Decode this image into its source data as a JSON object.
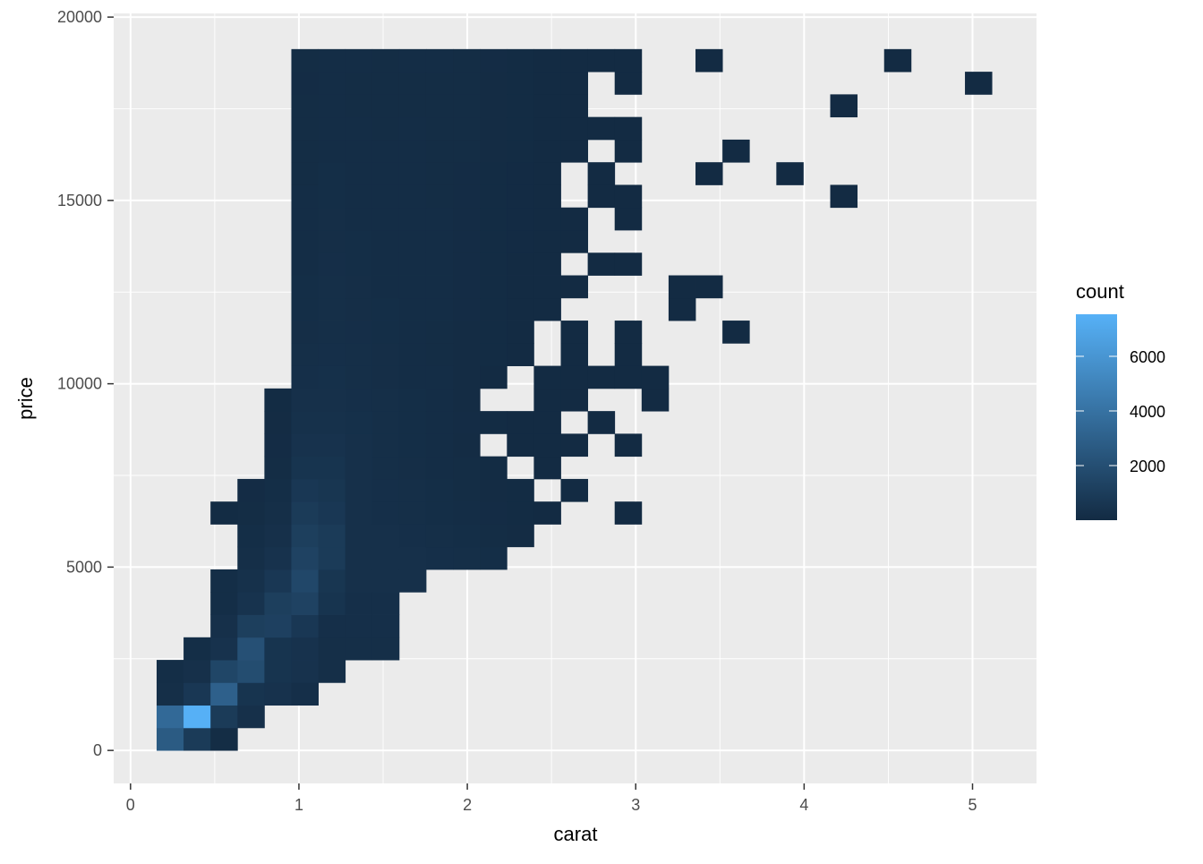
{
  "chart_data": {
    "type": "heatmap",
    "geom": "bin2d",
    "xlabel": "carat",
    "ylabel": "price",
    "xlim": [
      -0.1,
      5.38
    ],
    "ylim": [
      -900,
      20100
    ],
    "x_ticks": [
      0,
      1,
      2,
      3,
      4,
      5
    ],
    "x_tick_labels": [
      "0",
      "1",
      "2",
      "3",
      "4",
      "5"
    ],
    "y_ticks": [
      0,
      5000,
      10000,
      15000,
      20000
    ],
    "y_tick_labels": [
      "0",
      "5000",
      "10000",
      "15000",
      "20000"
    ],
    "grid": true,
    "panel_background": "#EBEBEB",
    "x_bin_start": 0.155,
    "x_bin_width": 0.16,
    "y_bin_start": 0,
    "y_bin_width": 617,
    "counts_rows_bottom_to_top": [
      [
        2700,
        900,
        100,
        0,
        0,
        0,
        0,
        0,
        0,
        0,
        0,
        0,
        0,
        0,
        0,
        0,
        0,
        0,
        0,
        0,
        0,
        0,
        0,
        0,
        0,
        0,
        0,
        0,
        0,
        0,
        0
      ],
      [
        3500,
        7500,
        900,
        300,
        0,
        0,
        0,
        0,
        0,
        0,
        0,
        0,
        0,
        0,
        0,
        0,
        0,
        0,
        0,
        0,
        0,
        0,
        0,
        0,
        0,
        0,
        0,
        0,
        0,
        0,
        0
      ],
      [
        200,
        700,
        3000,
        500,
        400,
        250,
        0,
        0,
        0,
        0,
        0,
        0,
        0,
        0,
        0,
        0,
        0,
        0,
        0,
        0,
        0,
        0,
        0,
        0,
        0,
        0,
        0,
        0,
        0,
        0,
        0
      ],
      [
        150,
        300,
        1500,
        1900,
        500,
        400,
        200,
        0,
        0,
        0,
        0,
        0,
        0,
        0,
        0,
        0,
        0,
        0,
        0,
        0,
        0,
        0,
        0,
        0,
        0,
        0,
        0,
        0,
        0,
        0,
        0
      ],
      [
        0,
        150,
        400,
        2100,
        500,
        400,
        200,
        200,
        200,
        0,
        0,
        0,
        0,
        0,
        0,
        0,
        0,
        0,
        0,
        0,
        0,
        0,
        0,
        0,
        0,
        0,
        0,
        0,
        0,
        0,
        0
      ],
      [
        0,
        0,
        300,
        1100,
        1200,
        700,
        250,
        250,
        250,
        0,
        0,
        0,
        0,
        0,
        0,
        0,
        0,
        0,
        0,
        0,
        0,
        0,
        0,
        0,
        0,
        0,
        0,
        0,
        0,
        0,
        0
      ],
      [
        0,
        0,
        150,
        450,
        1100,
        1300,
        500,
        250,
        250,
        0,
        0,
        0,
        0,
        0,
        0,
        0,
        0,
        0,
        0,
        0,
        0,
        0,
        0,
        0,
        0,
        0,
        0,
        0,
        0,
        0,
        0
      ],
      [
        0,
        0,
        150,
        350,
        700,
        1600,
        600,
        300,
        300,
        300,
        0,
        0,
        0,
        0,
        0,
        0,
        0,
        0,
        0,
        0,
        0,
        0,
        0,
        0,
        0,
        0,
        0,
        0,
        0,
        0,
        0
      ],
      [
        0,
        0,
        0,
        200,
        400,
        1300,
        900,
        300,
        300,
        300,
        250,
        200,
        150,
        0,
        0,
        0,
        0,
        0,
        0,
        0,
        0,
        0,
        0,
        0,
        0,
        0,
        0,
        0,
        0,
        0,
        0
      ],
      [
        0,
        0,
        0,
        150,
        300,
        1100,
        900,
        300,
        300,
        250,
        200,
        150,
        100,
        60,
        0,
        0,
        0,
        0,
        0,
        0,
        0,
        0,
        0,
        0,
        0,
        0,
        0,
        0,
        0,
        0,
        0
      ],
      [
        0,
        0,
        30,
        100,
        200,
        900,
        700,
        300,
        250,
        200,
        150,
        120,
        80,
        50,
        20,
        0,
        0,
        2,
        0,
        0,
        0,
        0,
        0,
        0,
        0,
        0,
        0,
        0,
        0,
        0,
        0
      ],
      [
        0,
        0,
        0,
        80,
        150,
        700,
        600,
        300,
        250,
        200,
        150,
        100,
        60,
        30,
        0,
        3,
        0,
        0,
        0,
        0,
        0,
        0,
        0,
        0,
        0,
        0,
        0,
        0,
        0,
        0,
        0
      ],
      [
        0,
        0,
        0,
        0,
        100,
        500,
        500,
        300,
        200,
        180,
        130,
        90,
        40,
        0,
        5,
        0,
        0,
        0,
        0,
        0,
        0,
        0,
        0,
        0,
        0,
        0,
        0,
        0,
        0,
        0,
        0
      ],
      [
        0,
        0,
        0,
        0,
        80,
        400,
        400,
        300,
        200,
        150,
        110,
        60,
        0,
        10,
        5,
        2,
        0,
        1,
        0,
        0,
        0,
        0,
        0,
        0,
        0,
        0,
        0,
        0,
        0,
        0,
        0
      ],
      [
        0,
        0,
        0,
        0,
        60,
        350,
        350,
        280,
        200,
        150,
        110,
        70,
        40,
        15,
        5,
        0,
        1,
        0,
        0,
        0,
        0,
        0,
        0,
        0,
        0,
        0,
        0,
        0,
        0,
        0,
        0
      ],
      [
        0,
        0,
        0,
        0,
        40,
        300,
        300,
        250,
        200,
        150,
        110,
        60,
        0,
        0,
        3,
        2,
        0,
        0,
        1,
        0,
        0,
        0,
        0,
        0,
        0,
        0,
        0,
        0,
        0,
        0,
        0
      ],
      [
        0,
        0,
        0,
        0,
        0,
        250,
        280,
        230,
        180,
        140,
        110,
        60,
        20,
        0,
        5,
        2,
        1,
        2,
        1,
        0,
        0,
        0,
        0,
        0,
        0,
        0,
        0,
        0,
        0,
        0,
        0
      ],
      [
        0,
        0,
        0,
        0,
        0,
        200,
        250,
        200,
        170,
        130,
        100,
        60,
        30,
        8,
        0,
        2,
        0,
        1,
        0,
        0,
        0,
        0,
        0,
        0,
        0,
        0,
        0,
        0,
        0,
        0,
        0
      ],
      [
        0,
        0,
        0,
        0,
        0,
        180,
        230,
        190,
        160,
        130,
        100,
        60,
        30,
        8,
        0,
        2,
        0,
        1,
        0,
        0,
        0,
        1,
        0,
        0,
        0,
        0,
        0,
        0,
        0,
        0,
        0
      ],
      [
        0,
        0,
        0,
        0,
        0,
        160,
        220,
        180,
        150,
        130,
        110,
        70,
        40,
        15,
        5,
        0,
        0,
        0,
        0,
        1,
        0,
        0,
        0,
        0,
        0,
        0,
        0,
        0,
        0,
        0,
        0
      ],
      [
        0,
        0,
        0,
        0,
        0,
        150,
        200,
        170,
        140,
        130,
        110,
        80,
        50,
        20,
        8,
        3,
        0,
        0,
        0,
        1,
        1,
        0,
        0,
        0,
        0,
        0,
        0,
        0,
        0,
        0,
        0
      ],
      [
        0,
        0,
        0,
        0,
        0,
        140,
        190,
        160,
        140,
        130,
        110,
        80,
        50,
        20,
        6,
        0,
        2,
        1,
        0,
        0,
        0,
        0,
        0,
        0,
        0,
        0,
        0,
        0,
        0,
        0,
        0
      ],
      [
        0,
        0,
        0,
        0,
        0,
        130,
        180,
        150,
        130,
        120,
        110,
        80,
        50,
        25,
        8,
        2,
        0,
        0,
        0,
        0,
        0,
        0,
        0,
        0,
        0,
        0,
        0,
        0,
        0,
        0,
        0
      ],
      [
        0,
        0,
        0,
        0,
        0,
        120,
        170,
        140,
        120,
        120,
        110,
        80,
        50,
        25,
        8,
        3,
        0,
        1,
        0,
        0,
        0,
        0,
        0,
        0,
        0,
        0,
        0,
        0,
        0,
        0,
        0
      ],
      [
        0,
        0,
        0,
        0,
        0,
        110,
        160,
        130,
        120,
        120,
        100,
        80,
        50,
        25,
        8,
        0,
        2,
        1,
        0,
        0,
        0,
        0,
        0,
        0,
        0,
        1,
        0,
        0,
        0,
        0,
        0
      ],
      [
        0,
        0,
        0,
        0,
        0,
        100,
        150,
        120,
        110,
        110,
        100,
        80,
        50,
        25,
        6,
        0,
        2,
        0,
        0,
        0,
        1,
        0,
        0,
        1,
        0,
        0,
        0,
        0,
        0,
        0,
        0
      ],
      [
        0,
        0,
        0,
        0,
        0,
        100,
        140,
        120,
        110,
        110,
        100,
        90,
        60,
        30,
        10,
        3,
        0,
        1,
        0,
        0,
        0,
        1,
        0,
        0,
        0,
        0,
        0,
        0,
        0,
        0,
        0
      ],
      [
        0,
        0,
        0,
        0,
        0,
        90,
        130,
        110,
        100,
        110,
        100,
        90,
        60,
        30,
        10,
        4,
        2,
        1,
        0,
        0,
        0,
        0,
        0,
        0,
        0,
        0,
        0,
        0,
        0,
        0,
        0
      ],
      [
        0,
        0,
        0,
        0,
        0,
        90,
        120,
        100,
        100,
        100,
        100,
        90,
        60,
        30,
        10,
        3,
        0,
        0,
        0,
        0,
        0,
        0,
        0,
        0,
        0,
        1,
        0,
        0,
        0,
        0,
        0
      ],
      [
        0,
        0,
        0,
        0,
        0,
        80,
        110,
        100,
        90,
        100,
        100,
        90,
        60,
        30,
        10,
        3,
        0,
        1,
        0,
        0,
        0,
        0,
        0,
        0,
        0,
        0,
        0,
        0,
        0,
        0,
        1
      ],
      [
        0,
        0,
        0,
        0,
        0,
        90,
        120,
        110,
        100,
        110,
        110,
        100,
        70,
        40,
        15,
        5,
        3,
        2,
        0,
        0,
        1,
        0,
        0,
        0,
        0,
        0,
        0,
        1,
        0,
        0,
        0
      ]
    ],
    "legend": {
      "title": "count",
      "placement": "right",
      "range": [
        1,
        7540
      ],
      "ticks": [
        2000,
        4000,
        6000
      ],
      "tick_labels": [
        "2000",
        "4000",
        "6000"
      ],
      "low_color": "#132B43",
      "high_color": "#56B1F7"
    }
  }
}
